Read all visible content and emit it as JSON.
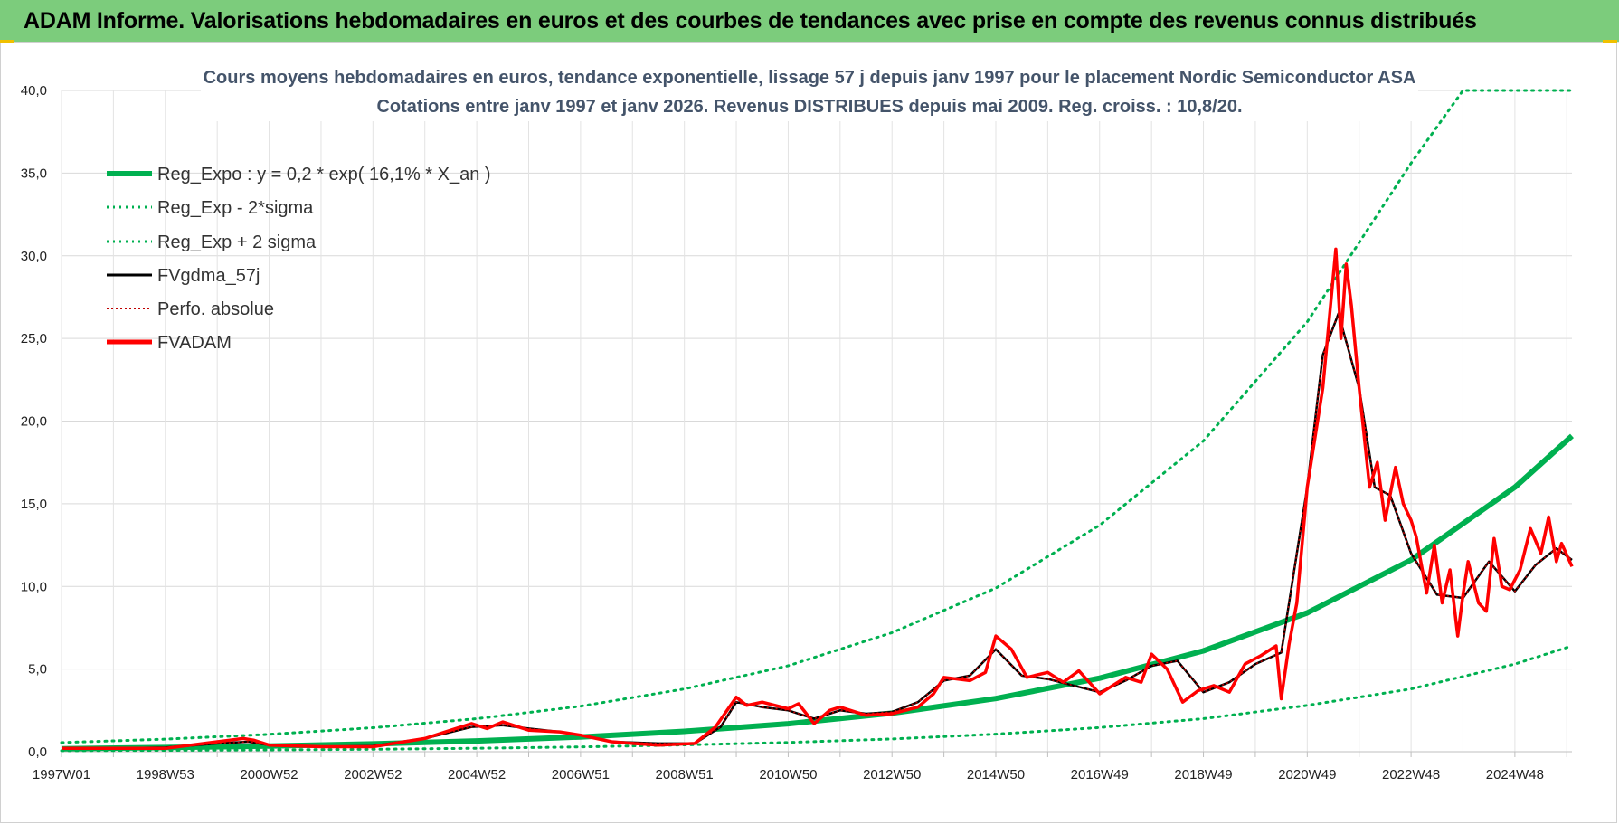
{
  "banner": {
    "title": "ADAM Informe. Valorisations hebdomadaires en euros et des courbes de tendances avec prise en compte des revenus connus distribués"
  },
  "colors": {
    "banner_bg": "#7ccc7c",
    "reg_expo": "#00b050",
    "fvgdma": "#000000",
    "perfo": "#c00000",
    "fvadam": "#ff0000",
    "title_text": "#44546a"
  },
  "chart_data": {
    "type": "line",
    "title": [
      "Cours moyens hebdomadaires en euros, tendance exponentielle, lissage 57 j depuis janv 1997 pour le placement Nordic Semiconductor ASA",
      "Cotations entre janv 1997 et janv 2026. Revenus DISTRIBUES depuis mai 2009.  Reg. croiss. : 10,8/20."
    ],
    "xlabel": "",
    "ylabel": "",
    "ylim": [
      0,
      40
    ],
    "yticks": [
      "0,0",
      "5,0",
      "10,0",
      "15,0",
      "20,0",
      "25,0",
      "30,0",
      "35,0",
      "40,0"
    ],
    "xlim": [
      1997.0,
      2026.1
    ],
    "xticks": [
      {
        "label": "1997W01",
        "x": 1997.0
      },
      {
        "label": "1998W53",
        "x": 1999.0
      },
      {
        "label": "2000W52",
        "x": 2001.0
      },
      {
        "label": "2002W52",
        "x": 2003.0
      },
      {
        "label": "2004W52",
        "x": 2005.0
      },
      {
        "label": "2006W51",
        "x": 2007.0
      },
      {
        "label": "2008W51",
        "x": 2009.0
      },
      {
        "label": "2010W50",
        "x": 2011.0
      },
      {
        "label": "2012W50",
        "x": 2013.0
      },
      {
        "label": "2014W50",
        "x": 2015.0
      },
      {
        "label": "2016W49",
        "x": 2017.0
      },
      {
        "label": "2018W49",
        "x": 2019.0
      },
      {
        "label": "2020W49",
        "x": 2021.0
      },
      {
        "label": "2022W48",
        "x": 2023.0
      },
      {
        "label": "2024W48",
        "x": 2025.0
      }
    ],
    "legend": [
      "Reg_Expo : y = 0,2 * exp( 16,1% *  X_an )",
      "Reg_Exp - 2*sigma",
      "Reg_Exp + 2 sigma",
      "FVgdma_57j",
      "Perfo. absolue",
      "FVADAM"
    ],
    "series": [
      {
        "name": "Reg_Expo : y = 0,2 * exp( 16,1% *  X_an )",
        "style": "thick",
        "x": [
          1997,
          1999,
          2001,
          2003,
          2005,
          2007,
          2009,
          2011,
          2013,
          2015,
          2017,
          2019,
          2021,
          2023,
          2025,
          2026.1
        ],
        "values": [
          0.18,
          0.25,
          0.34,
          0.47,
          0.65,
          0.89,
          1.23,
          1.69,
          2.33,
          3.22,
          4.45,
          6.1,
          8.4,
          11.6,
          16.0,
          19.1
        ]
      },
      {
        "name": "Reg_Exp - 2*sigma",
        "style": "dotted",
        "x": [
          1997,
          1999,
          2001,
          2003,
          2005,
          2007,
          2009,
          2011,
          2013,
          2015,
          2017,
          2019,
          2021,
          2023,
          2025,
          2026.1
        ],
        "values": [
          0.06,
          0.08,
          0.11,
          0.15,
          0.21,
          0.29,
          0.41,
          0.56,
          0.77,
          1.06,
          1.46,
          2.0,
          2.8,
          3.8,
          5.3,
          6.4
        ]
      },
      {
        "name": "Reg_Exp + 2 sigma",
        "style": "dotted",
        "x": [
          1997,
          1999,
          2001,
          2003,
          2005,
          2007,
          2009,
          2011,
          2013,
          2015,
          2017,
          2019,
          2021,
          2023,
          2024.0,
          2025,
          2026.1
        ],
        "values": [
          0.55,
          0.76,
          1.05,
          1.45,
          2.0,
          2.75,
          3.8,
          5.2,
          7.2,
          9.9,
          13.7,
          18.8,
          26.0,
          35.6,
          40.0,
          40.0,
          40.0
        ]
      },
      {
        "name": "FVgdma_57j",
        "style": "black",
        "x": [
          1997,
          1998,
          1999,
          2000,
          2000.6,
          2001,
          2002,
          2003,
          2004,
          2004.9,
          2005.5,
          2006,
          2006.6,
          2007,
          2007.6,
          2008.5,
          2009.2,
          2009.7,
          2010.0,
          2010.5,
          2011.0,
          2011.5,
          2012.0,
          2012.5,
          2013.0,
          2013.5,
          2014.0,
          2014.5,
          2015.0,
          2015.5,
          2016.0,
          2016.5,
          2017.0,
          2017.5,
          2018.0,
          2018.5,
          2019.0,
          2019.5,
          2020.0,
          2020.5,
          2021.0,
          2021.3,
          2021.6,
          2022.0,
          2022.3,
          2022.6,
          2023.0,
          2023.5,
          2024.0,
          2024.5,
          2025.0,
          2025.4,
          2025.8,
          2026.1
        ],
        "values": [
          0.2,
          0.2,
          0.25,
          0.5,
          0.6,
          0.4,
          0.3,
          0.35,
          0.8,
          1.5,
          1.6,
          1.4,
          1.2,
          1.0,
          0.6,
          0.5,
          0.5,
          1.5,
          3.0,
          2.7,
          2.5,
          2.0,
          2.5,
          2.3,
          2.4,
          3.0,
          4.3,
          4.6,
          6.2,
          4.6,
          4.4,
          4.0,
          3.6,
          4.3,
          5.2,
          5.5,
          3.6,
          4.2,
          5.3,
          6.0,
          16.0,
          24.0,
          26.5,
          22.0,
          16.0,
          15.5,
          12.0,
          9.5,
          9.3,
          11.5,
          9.7,
          11.3,
          12.3,
          11.6
        ]
      },
      {
        "name": "Perfo. absolue",
        "style": "dotted-red",
        "x": [
          1997,
          1998,
          1999,
          2000,
          2000.6,
          2001,
          2002,
          2003,
          2004,
          2004.9,
          2005.5,
          2006,
          2006.6,
          2007,
          2007.6,
          2008.5,
          2009.2,
          2009.7,
          2010.0,
          2010.5,
          2011.0,
          2011.5,
          2012.0,
          2012.5,
          2013.0,
          2013.5,
          2014.0,
          2014.5,
          2015.0,
          2015.5,
          2016.0,
          2016.5,
          2017.0,
          2017.5,
          2018.0,
          2018.5,
          2019.0,
          2019.5,
          2020.0,
          2020.5,
          2021.0,
          2021.3,
          2021.6,
          2022.0,
          2022.3,
          2022.6,
          2023.0,
          2023.5,
          2024.0,
          2024.5,
          2025.0,
          2025.4,
          2025.8,
          2026.1
        ],
        "values": [
          0.2,
          0.2,
          0.25,
          0.5,
          0.6,
          0.4,
          0.3,
          0.35,
          0.8,
          1.5,
          1.6,
          1.4,
          1.2,
          1.0,
          0.6,
          0.5,
          0.5,
          1.5,
          3.0,
          2.7,
          2.5,
          2.0,
          2.5,
          2.3,
          2.4,
          3.0,
          4.3,
          4.6,
          6.2,
          4.6,
          4.4,
          4.0,
          3.6,
          4.3,
          5.2,
          5.5,
          3.6,
          4.2,
          5.3,
          6.0,
          16.0,
          24.0,
          26.5,
          22.0,
          16.0,
          15.5,
          12.0,
          9.5,
          9.3,
          11.5,
          9.7,
          11.3,
          12.3,
          11.6
        ]
      },
      {
        "name": "FVADAM",
        "style": "thick-red",
        "x": [
          1997,
          1998,
          1999,
          2000,
          2000.5,
          2000.7,
          2001,
          2002,
          2003,
          2004,
          2004.5,
          2004.9,
          2005.2,
          2005.5,
          2005.8,
          2006,
          2006.6,
          2007,
          2007.6,
          2008.0,
          2008.5,
          2009.2,
          2009.6,
          2010.0,
          2010.2,
          2010.5,
          2011.0,
          2011.2,
          2011.5,
          2011.8,
          2012.0,
          2012.5,
          2013.0,
          2013.5,
          2013.8,
          2014.0,
          2014.5,
          2014.8,
          2015.0,
          2015.3,
          2015.6,
          2016.0,
          2016.3,
          2016.6,
          2017.0,
          2017.5,
          2017.8,
          2018.0,
          2018.3,
          2018.6,
          2018.9,
          2019.2,
          2019.5,
          2019.8,
          2020.1,
          2020.4,
          2020.5,
          2020.65,
          2020.8,
          2021.0,
          2021.3,
          2021.55,
          2021.65,
          2021.75,
          2021.85,
          2022.0,
          2022.2,
          2022.35,
          2022.5,
          2022.7,
          2022.85,
          2023.0,
          2023.1,
          2023.3,
          2023.45,
          2023.6,
          2023.75,
          2023.9,
          2024.0,
          2024.1,
          2024.3,
          2024.45,
          2024.6,
          2024.75,
          2024.9,
          2025.1,
          2025.3,
          2025.5,
          2025.65,
          2025.8,
          2025.9,
          2026.1
        ],
        "values": [
          0.2,
          0.2,
          0.2,
          0.6,
          0.8,
          0.7,
          0.4,
          0.3,
          0.3,
          0.8,
          1.3,
          1.7,
          1.4,
          1.8,
          1.5,
          1.3,
          1.2,
          1.0,
          0.6,
          0.5,
          0.4,
          0.5,
          1.5,
          3.3,
          2.8,
          3.0,
          2.6,
          2.9,
          1.7,
          2.5,
          2.7,
          2.2,
          2.3,
          2.7,
          3.5,
          4.5,
          4.3,
          4.8,
          7.0,
          6.2,
          4.5,
          4.8,
          4.2,
          4.9,
          3.5,
          4.5,
          4.2,
          5.9,
          5.0,
          3.0,
          3.7,
          4.0,
          3.6,
          5.3,
          5.8,
          6.4,
          3.2,
          6.5,
          9.0,
          16.0,
          22.0,
          30.4,
          25.0,
          29.5,
          27.0,
          22.0,
          16.0,
          17.5,
          14.0,
          17.2,
          15.0,
          14.0,
          13.0,
          9.6,
          12.5,
          9.0,
          11.0,
          7.0,
          9.5,
          11.5,
          9.0,
          8.5,
          12.9,
          10.0,
          9.8,
          11.0,
          13.5,
          12.0,
          14.2,
          11.5,
          12.6,
          11.2
        ]
      }
    ]
  }
}
